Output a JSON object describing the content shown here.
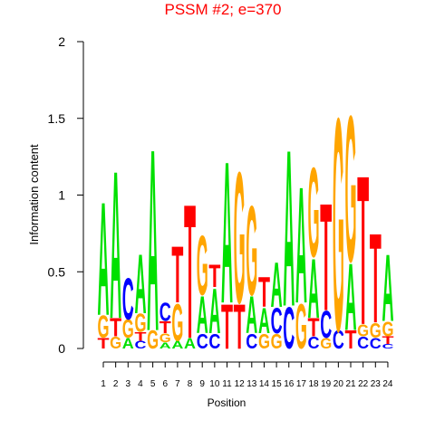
{
  "chart_data": {
    "type": "logo",
    "title": "PSSM #2; e=370",
    "xlabel": "Position",
    "ylabel": "Information content",
    "categories": [
      1,
      2,
      3,
      4,
      5,
      6,
      7,
      8,
      9,
      10,
      11,
      12,
      13,
      14,
      15,
      16,
      17,
      18,
      19,
      20,
      21,
      22,
      23,
      24
    ],
    "ylim": [
      0,
      2
    ],
    "yticks": [
      0,
      0.5,
      1,
      1.5,
      2
    ],
    "colors": {
      "A": "#00e000",
      "C": "#0000ff",
      "G": "#ffa500",
      "T": "#ff0000"
    },
    "stacks": [
      {
        "letters": [
          "T",
          "G",
          "A"
        ],
        "heights": [
          0.07,
          0.15,
          0.76
        ]
      },
      {
        "letters": [
          "G",
          "T",
          "A"
        ],
        "heights": [
          0.08,
          0.12,
          0.99
        ]
      },
      {
        "letters": [
          "A",
          "G",
          "C"
        ],
        "heights": [
          0.07,
          0.12,
          0.28
        ]
      },
      {
        "letters": [
          "C",
          "T",
          "G",
          "A"
        ],
        "heights": [
          0.05,
          0.06,
          0.12,
          0.4
        ]
      },
      {
        "letters": [
          "G",
          "A"
        ],
        "heights": [
          0.12,
          1.22
        ]
      },
      {
        "letters": [
          "A",
          "G",
          "T",
          "C"
        ],
        "heights": [
          0.04,
          0.06,
          0.08,
          0.12
        ]
      },
      {
        "letters": [
          "A",
          "G",
          "T"
        ],
        "heights": [
          0.05,
          0.25,
          0.38
        ]
      },
      {
        "letters": [
          "A",
          "T"
        ],
        "heights": [
          0.07,
          0.9
        ]
      },
      {
        "letters": [
          "C",
          "A",
          "G"
        ],
        "heights": [
          0.1,
          0.25,
          0.4
        ]
      },
      {
        "letters": [
          "C",
          "A",
          "T"
        ],
        "heights": [
          0.1,
          0.3,
          0.15
        ]
      },
      {
        "letters": [
          "T",
          "A"
        ],
        "heights": [
          0.3,
          0.95
        ]
      },
      {
        "letters": [
          "T",
          "G"
        ],
        "heights": [
          0.3,
          0.88
        ]
      },
      {
        "letters": [
          "C",
          "A",
          "G"
        ],
        "heights": [
          0.1,
          0.25,
          0.6
        ]
      },
      {
        "letters": [
          "G",
          "A",
          "T"
        ],
        "heights": [
          0.1,
          0.17,
          0.2
        ]
      },
      {
        "letters": [
          "G",
          "C",
          "A"
        ],
        "heights": [
          0.1,
          0.17,
          0.3
        ]
      },
      {
        "letters": [
          "C",
          "A"
        ],
        "heights": [
          0.28,
          1.05
        ]
      },
      {
        "letters": [
          "G",
          "A"
        ],
        "heights": [
          0.3,
          0.78
        ]
      },
      {
        "letters": [
          "C",
          "T",
          "A",
          "G"
        ],
        "heights": [
          0.08,
          0.12,
          0.4,
          0.6
        ]
      },
      {
        "letters": [
          "G",
          "C",
          "T"
        ],
        "heights": [
          0.07,
          0.18,
          0.72
        ]
      },
      {
        "letters": [
          "C",
          "G"
        ],
        "heights": [
          0.12,
          1.43
        ]
      },
      {
        "letters": [
          "T",
          "A",
          "G"
        ],
        "heights": [
          0.12,
          0.45,
          0.98
        ]
      },
      {
        "letters": [
          "C",
          "G",
          "T"
        ],
        "heights": [
          0.08,
          0.08,
          1.0
        ]
      },
      {
        "letters": [
          "C",
          "G",
          "T"
        ],
        "heights": [
          0.07,
          0.1,
          0.6
        ]
      },
      {
        "letters": [
          "C",
          "T",
          "G",
          "A"
        ],
        "heights": [
          0.03,
          0.05,
          0.1,
          0.45
        ]
      }
    ]
  }
}
